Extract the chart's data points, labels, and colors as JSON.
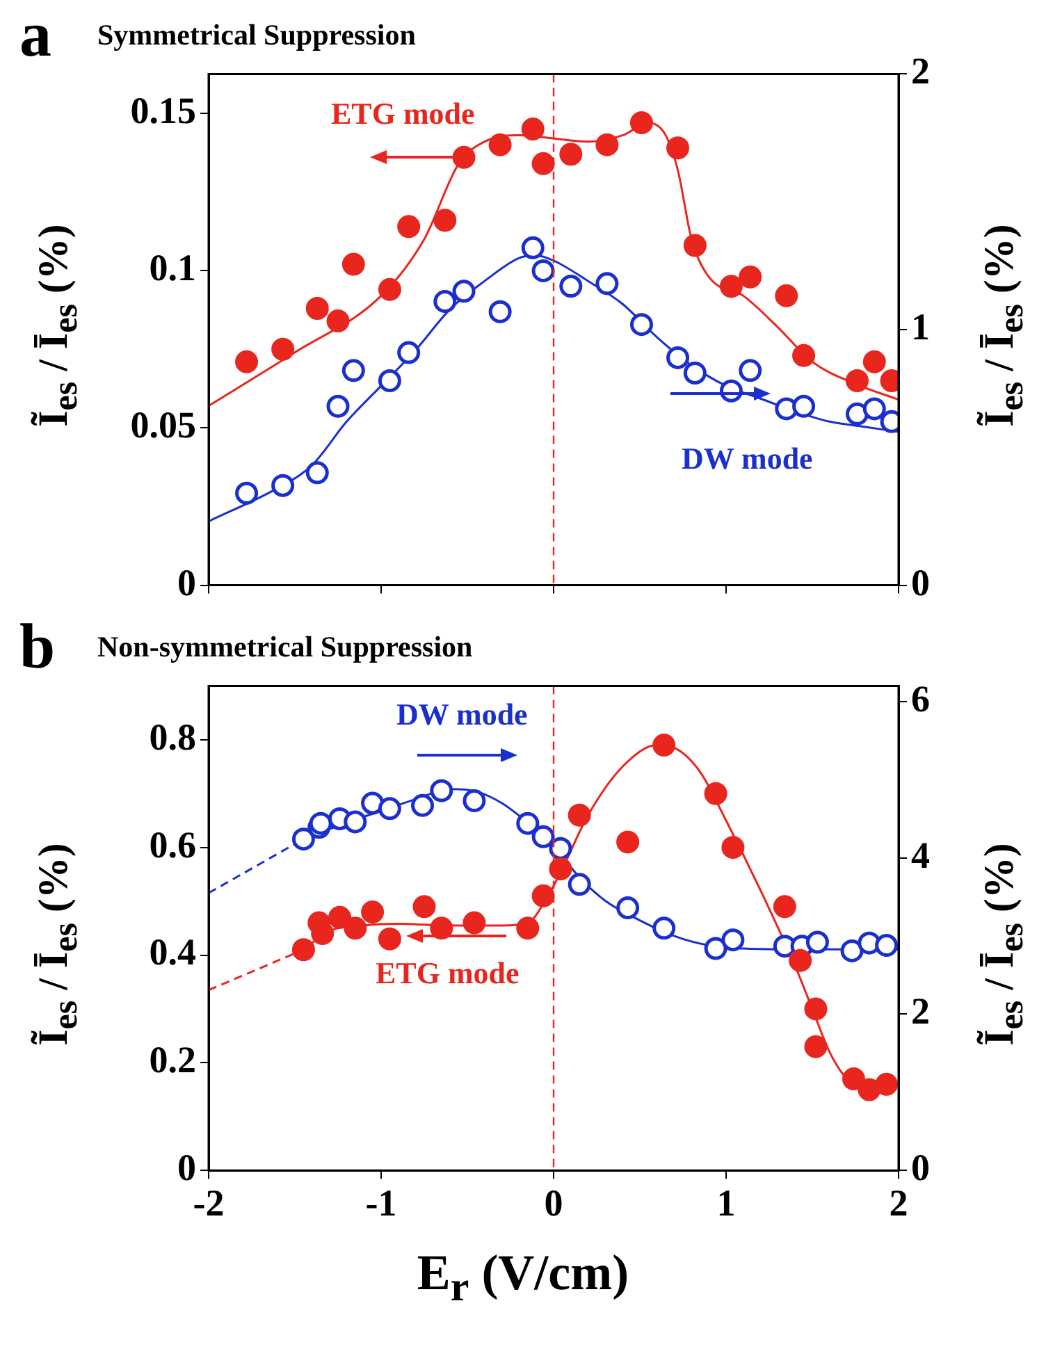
{
  "chart_data": [
    {
      "type": "scatter",
      "title": "Symmetrical Suppression",
      "ylabel": "Ĩ$_{es}$ / Ī$_{es}$ (%)",
      "y2label": "Ĩ$_{es}$ / Ī$_{es}$ (%)",
      "annotations": [
        "a",
        "ETG mode",
        "DW mode"
      ],
      "xlim": [
        -2,
        2
      ],
      "xticks": [
        -2,
        -1,
        0,
        1,
        2
      ],
      "ylim": [
        0,
        0.1625
      ],
      "yticks": [
        0,
        0.05,
        0.1,
        0.15
      ],
      "y2lim": [
        0,
        2
      ],
      "y2ticks": [
        0,
        1,
        2
      ],
      "tick_labels": "y",
      "marker": "circle",
      "ref_lines": [
        {
          "axis": "x",
          "value": 0,
          "color": "#e8261e",
          "line_style": "dashed"
        }
      ],
      "series": [
        {
          "color": "#e8261e",
          "x": [
            -1.78,
            -1.57,
            -1.37,
            -1.25,
            -1.16,
            -0.95,
            -0.84,
            -0.63,
            -0.52,
            -0.31,
            -0.12,
            -0.06,
            0.1,
            0.31,
            0.51,
            0.72,
            0.82,
            1.03,
            1.14,
            1.35,
            1.45,
            1.76,
            1.86,
            1.96
          ],
          "values": [
            0.071,
            0.075,
            0.088,
            0.084,
            0.102,
            0.094,
            0.114,
            0.116,
            0.136,
            0.14,
            0.145,
            0.134,
            0.137,
            0.14,
            0.147,
            0.139,
            0.108,
            0.095,
            0.098,
            0.092,
            0.073,
            0.065,
            0.071,
            0.065
          ]
        },
        {
          "color": "#1a2fd0",
          "axis": "y2",
          "x": [
            -1.78,
            -1.57,
            -1.37,
            -1.25,
            -1.16,
            -0.95,
            -0.84,
            -0.63,
            -0.52,
            -0.31,
            -0.12,
            -0.06,
            0.1,
            0.31,
            0.51,
            0.72,
            0.82,
            1.03,
            1.14,
            1.35,
            1.45,
            1.76,
            1.86,
            1.96
          ],
          "values": [
            0.36,
            0.39,
            0.44,
            0.7,
            0.84,
            0.8,
            0.91,
            1.11,
            1.15,
            1.07,
            1.32,
            1.23,
            1.17,
            1.18,
            1.02,
            0.89,
            0.83,
            0.76,
            0.84,
            0.69,
            0.7,
            0.67,
            0.69,
            0.64
          ]
        },
        {
          "type": "line",
          "marker": "none",
          "color": "#e8261e",
          "x": [
            -2,
            -1.5,
            -1,
            -0.75,
            -0.55,
            -0.4,
            -0.2,
            0,
            0.2,
            0.4,
            0.55,
            0.65,
            0.72,
            0.8,
            0.9,
            1.1,
            1.3,
            1.5,
            1.75,
            2
          ],
          "values": [
            0.057,
            0.074,
            0.092,
            0.11,
            0.134,
            0.141,
            0.143,
            0.142,
            0.141,
            0.143,
            0.147,
            0.143,
            0.132,
            0.11,
            0.098,
            0.092,
            0.082,
            0.071,
            0.064,
            0.059
          ]
        },
        {
          "type": "line",
          "marker": "none",
          "color": "#1a2fd0",
          "axis": "y2",
          "x": [
            -2,
            -1.6,
            -1.4,
            -1.2,
            -1,
            -0.8,
            -0.6,
            -0.4,
            -0.2,
            -0.1,
            0,
            0.2,
            0.4,
            0.6,
            0.8,
            1,
            1.2,
            1.4,
            1.6,
            1.8,
            2
          ],
          "values": [
            0.25,
            0.38,
            0.47,
            0.64,
            0.78,
            0.92,
            1.08,
            1.19,
            1.28,
            1.29,
            1.27,
            1.19,
            1.1,
            0.97,
            0.86,
            0.78,
            0.73,
            0.68,
            0.64,
            0.62,
            0.6
          ]
        }
      ]
    },
    {
      "type": "scatter",
      "title": "Non-symmetrical Suppression",
      "xlabel": "E$_{r}$ (V/cm)",
      "ylabel": "Ĩ$_{es}$ / Ī$_{es}$ (%)",
      "y2label": "Ĩ$_{es}$ / Ī$_{es}$ (%)",
      "annotations": [
        "b",
        "DW mode",
        "ETG mode"
      ],
      "xlim": [
        -2,
        2
      ],
      "xticks": [
        -2,
        -1,
        0,
        1,
        2
      ],
      "ylim": [
        0,
        0.9
      ],
      "yticks": [
        0,
        0.2,
        0.4,
        0.6,
        0.8
      ],
      "y2lim": [
        0,
        6.2
      ],
      "y2ticks": [
        0,
        2,
        4,
        6
      ],
      "marker": "circle",
      "ref_lines": [
        {
          "axis": "x",
          "value": 0,
          "color": "#e8261e",
          "line_style": "dashed"
        }
      ],
      "series": [
        {
          "color": "#e8261e",
          "x": [
            -1.45,
            -1.36,
            -1.34,
            -1.24,
            -1.15,
            -1.05,
            -0.95,
            -0.75,
            -0.65,
            -0.46,
            -0.15,
            -0.06,
            0.04,
            0.15,
            0.43,
            0.64,
            0.94,
            1.04,
            1.34,
            1.43,
            1.52,
            1.52,
            1.74,
            1.83,
            1.93
          ],
          "values": [
            0.41,
            0.46,
            0.44,
            0.47,
            0.45,
            0.48,
            0.43,
            0.49,
            0.45,
            0.46,
            0.45,
            0.51,
            0.56,
            0.66,
            0.61,
            0.79,
            0.7,
            0.6,
            0.49,
            0.39,
            0.3,
            0.23,
            0.17,
            0.15,
            0.16
          ]
        },
        {
          "color": "#1a2fd0",
          "axis": "y2",
          "x": [
            -1.45,
            -1.36,
            -1.35,
            -1.24,
            -1.15,
            -1.05,
            -0.95,
            -0.76,
            -0.65,
            -0.46,
            -0.15,
            -0.06,
            0.04,
            0.15,
            0.43,
            0.64,
            0.94,
            1.04,
            1.34,
            1.44,
            1.53,
            1.73,
            1.83,
            1.93
          ],
          "values": [
            4.24,
            4.39,
            4.44,
            4.5,
            4.46,
            4.7,
            4.63,
            4.67,
            4.86,
            4.73,
            4.44,
            4.27,
            4.12,
            3.66,
            3.36,
            3.1,
            2.84,
            2.95,
            2.87,
            2.87,
            2.92,
            2.81,
            2.91,
            2.88
          ]
        },
        {
          "type": "line",
          "marker": "none",
          "color": "#e8261e",
          "x": [
            -1.45,
            -1.3,
            -1.1,
            -0.9,
            -0.7,
            -0.5,
            -0.3,
            -0.15,
            -0.05,
            0.05,
            0.2,
            0.4,
            0.6,
            0.7,
            0.85,
            1,
            1.2,
            1.4,
            1.5,
            1.6,
            1.7,
            1.8,
            1.9,
            2
          ],
          "values": [
            0.41,
            0.445,
            0.455,
            0.458,
            0.456,
            0.455,
            0.455,
            0.46,
            0.5,
            0.56,
            0.66,
            0.75,
            0.79,
            0.785,
            0.74,
            0.65,
            0.52,
            0.38,
            0.3,
            0.22,
            0.17,
            0.15,
            0.155,
            0.16
          ]
        },
        {
          "type": "line",
          "marker": "none",
          "color": "#1a2fd0",
          "axis": "y2",
          "x": [
            -1.45,
            -1.2,
            -1,
            -0.8,
            -0.6,
            -0.45,
            -0.3,
            -0.15,
            0,
            0.15,
            0.3,
            0.5,
            0.7,
            0.9,
            1.1,
            1.3,
            1.5,
            1.7,
            2
          ],
          "values": [
            4.24,
            4.45,
            4.6,
            4.75,
            4.88,
            4.85,
            4.7,
            4.45,
            4.15,
            3.75,
            3.45,
            3.2,
            3,
            2.88,
            2.84,
            2.83,
            2.83,
            2.83,
            2.83
          ]
        },
        {
          "type": "line",
          "marker": "none",
          "line_style": "dashed",
          "color": "#e8261e",
          "x": [
            -2,
            -1.45
          ],
          "values": [
            0.335,
            0.41
          ]
        },
        {
          "type": "line",
          "marker": "none",
          "line_style": "dashed",
          "color": "#1a2fd0",
          "axis": "y2",
          "x": [
            -2,
            -1.45
          ],
          "values": [
            3.55,
            4.24
          ]
        }
      ]
    }
  ]
}
